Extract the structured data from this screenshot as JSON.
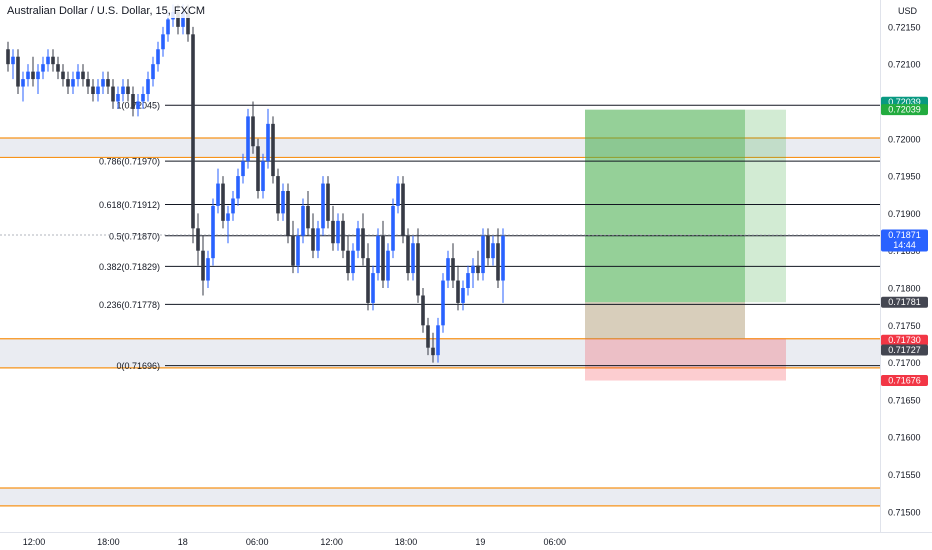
{
  "header": {
    "symbol_title": "Australian Dollar / U.S. Dollar, 15, FXCM",
    "currency": "USD"
  },
  "price_axis": {
    "ticks": [
      "0.72150",
      "0.72100",
      "0.72050",
      "0.72000",
      "0.71950",
      "0.71900",
      "0.71850",
      "0.71800",
      "0.71750",
      "0.71700",
      "0.71650",
      "0.71600",
      "0.71550",
      "0.71500"
    ],
    "tick_values": [
      0.7215,
      0.721,
      0.7205,
      0.72,
      0.7195,
      0.719,
      0.7185,
      0.718,
      0.7175,
      0.717,
      0.7165,
      0.716,
      0.7155,
      0.715
    ]
  },
  "time_axis": {
    "labels": [
      "12:00",
      "18:00",
      "18",
      "06:00",
      "12:00",
      "18:00",
      "19",
      "06:00"
    ],
    "bar_index": [
      0,
      24,
      48,
      72,
      96,
      120,
      144,
      168
    ]
  },
  "price_badges": [
    {
      "name": "tp-badge-top",
      "text": "0.72039",
      "price": 0.72049,
      "bg": "#089981",
      "fg": "#ffffff"
    },
    {
      "name": "tp-badge",
      "text": "0.72039",
      "price": 0.72039,
      "bg": "#22ab3f",
      "fg": "#ffffff"
    },
    {
      "name": "last-price-badge",
      "text": "0.71871",
      "sub": "14:44",
      "price": 0.71871,
      "bg": "#2962ff",
      "fg": "#ffffff"
    },
    {
      "name": "entry-badge",
      "text": "0.71781",
      "price": 0.71781,
      "bg": "#434651",
      "fg": "#ffffff"
    },
    {
      "name": "zone-badge-red",
      "text": "0.71730",
      "price": 0.7173,
      "bg": "#f23645",
      "fg": "#ffffff"
    },
    {
      "name": "zone-badge-grey",
      "text": "0.71727",
      "price": 0.71717,
      "bg": "#434651",
      "fg": "#ffffff"
    },
    {
      "name": "stop-badge",
      "text": "0.71676",
      "price": 0.71676,
      "bg": "#f23645",
      "fg": "#ffffff"
    }
  ],
  "fib_levels": [
    {
      "label": "1(0.72045)",
      "price": 0.72045
    },
    {
      "label": "0.786(0.71970)",
      "price": 0.7197
    },
    {
      "label": "0.618(0.71912)",
      "price": 0.71912
    },
    {
      "label": "0.5(0.71870)",
      "price": 0.7187
    },
    {
      "label": "0.382(0.71829)",
      "price": 0.71829
    },
    {
      "label": "0.236(0.71778)",
      "price": 0.71778
    },
    {
      "label": "0(0.71696)",
      "price": 0.71696
    }
  ],
  "zones": [
    {
      "top": 0.72001,
      "bottom": 0.71975
    },
    {
      "top": 0.71732,
      "bottom": 0.71693
    },
    {
      "top": 0.71532,
      "bottom": 0.71508
    }
  ],
  "colors": {
    "up": "#2962ff",
    "down": "#363a45",
    "zone_line": "#f7931a",
    "zone_fill": "#e3e6ed",
    "profit": "#4caf50",
    "loss": "#f23645",
    "fib_line": "#131722"
  },
  "position": {
    "entry": 0.71781,
    "target": 0.72039,
    "stop": 0.71676,
    "start_bar": 130,
    "end_bar": 170
  },
  "chart_data": {
    "type": "candlestick",
    "title": "Australian Dollar / U.S. Dollar, 15, FXCM",
    "ylabel": "USD",
    "ylim": [
      0.7148,
      0.7218
    ],
    "x_labels": [
      "12:00",
      "18:00",
      "18",
      "06:00",
      "12:00",
      "18:00",
      "19",
      "06:00"
    ],
    "candles": [
      [
        0.7212,
        0.7213,
        0.7209,
        0.721
      ],
      [
        0.721,
        0.7212,
        0.7208,
        0.7211
      ],
      [
        0.7211,
        0.7212,
        0.7206,
        0.7207
      ],
      [
        0.7207,
        0.7209,
        0.7205,
        0.7208
      ],
      [
        0.7208,
        0.721,
        0.7207,
        0.7209
      ],
      [
        0.7209,
        0.7211,
        0.7207,
        0.7208
      ],
      [
        0.7208,
        0.721,
        0.7206,
        0.7209
      ],
      [
        0.7209,
        0.7211,
        0.7208,
        0.721
      ],
      [
        0.721,
        0.7212,
        0.7209,
        0.7211
      ],
      [
        0.7211,
        0.7212,
        0.7209,
        0.721
      ],
      [
        0.721,
        0.7211,
        0.7208,
        0.7209
      ],
      [
        0.7209,
        0.721,
        0.7207,
        0.7208
      ],
      [
        0.7208,
        0.7209,
        0.7206,
        0.7207
      ],
      [
        0.7207,
        0.7209,
        0.7206,
        0.7208
      ],
      [
        0.7208,
        0.721,
        0.7207,
        0.7209
      ],
      [
        0.7209,
        0.721,
        0.7207,
        0.7208
      ],
      [
        0.7208,
        0.7209,
        0.7206,
        0.7207
      ],
      [
        0.7207,
        0.7208,
        0.7205,
        0.7206
      ],
      [
        0.7206,
        0.7208,
        0.7205,
        0.7207
      ],
      [
        0.7207,
        0.7209,
        0.7206,
        0.7208
      ],
      [
        0.7208,
        0.7209,
        0.7206,
        0.7207
      ],
      [
        0.7207,
        0.7208,
        0.7204,
        0.7205
      ],
      [
        0.7205,
        0.7207,
        0.7204,
        0.7206
      ],
      [
        0.7206,
        0.7208,
        0.7205,
        0.7207
      ],
      [
        0.7207,
        0.7208,
        0.7205,
        0.7206
      ],
      [
        0.7206,
        0.7207,
        0.7203,
        0.7204
      ],
      [
        0.7204,
        0.7206,
        0.7203,
        0.7205
      ],
      [
        0.7205,
        0.7207,
        0.7204,
        0.7206
      ],
      [
        0.7206,
        0.7209,
        0.7205,
        0.7208
      ],
      [
        0.7208,
        0.7211,
        0.7207,
        0.721
      ],
      [
        0.721,
        0.7213,
        0.7209,
        0.7212
      ],
      [
        0.7212,
        0.7215,
        0.7211,
        0.7214
      ],
      [
        0.7214,
        0.7217,
        0.7213,
        0.7216
      ],
      [
        0.7216,
        0.7218,
        0.7215,
        0.7217
      ],
      [
        0.7217,
        0.7218,
        0.7214,
        0.7215
      ],
      [
        0.7215,
        0.7218,
        0.7214,
        0.7217
      ],
      [
        0.7217,
        0.7218,
        0.7213,
        0.7214
      ],
      [
        0.7214,
        0.7215,
        0.7186,
        0.7188
      ],
      [
        0.7188,
        0.719,
        0.7183,
        0.7185
      ],
      [
        0.7185,
        0.7187,
        0.7179,
        0.7181
      ],
      [
        0.7181,
        0.7185,
        0.718,
        0.7184
      ],
      [
        0.7184,
        0.7192,
        0.7183,
        0.7191
      ],
      [
        0.7191,
        0.7196,
        0.719,
        0.7194
      ],
      [
        0.7194,
        0.7195,
        0.7188,
        0.7189
      ],
      [
        0.7189,
        0.7191,
        0.7186,
        0.719
      ],
      [
        0.719,
        0.7193,
        0.7189,
        0.7192
      ],
      [
        0.7192,
        0.7196,
        0.7191,
        0.7195
      ],
      [
        0.7195,
        0.7198,
        0.7194,
        0.7197
      ],
      [
        0.7197,
        0.7204,
        0.7196,
        0.7203
      ],
      [
        0.7203,
        0.7205,
        0.7198,
        0.7199
      ],
      [
        0.7199,
        0.72,
        0.7192,
        0.7193
      ],
      [
        0.7193,
        0.7198,
        0.7192,
        0.7197
      ],
      [
        0.7197,
        0.7204,
        0.7196,
        0.7202
      ],
      [
        0.7202,
        0.7203,
        0.7194,
        0.7195
      ],
      [
        0.7195,
        0.7196,
        0.7189,
        0.719
      ],
      [
        0.719,
        0.7194,
        0.7189,
        0.7193
      ],
      [
        0.7193,
        0.7194,
        0.7186,
        0.7187
      ],
      [
        0.7187,
        0.7189,
        0.7182,
        0.7183
      ],
      [
        0.7183,
        0.7188,
        0.7182,
        0.7187
      ],
      [
        0.7187,
        0.7192,
        0.7186,
        0.7191
      ],
      [
        0.7191,
        0.7193,
        0.7187,
        0.7188
      ],
      [
        0.7188,
        0.719,
        0.7184,
        0.7185
      ],
      [
        0.7185,
        0.7189,
        0.7184,
        0.7188
      ],
      [
        0.7188,
        0.7195,
        0.7187,
        0.7194
      ],
      [
        0.7194,
        0.7195,
        0.7188,
        0.7189
      ],
      [
        0.7189,
        0.7191,
        0.7185,
        0.7186
      ],
      [
        0.7186,
        0.719,
        0.7185,
        0.7189
      ],
      [
        0.7189,
        0.719,
        0.7184,
        0.7185
      ],
      [
        0.7185,
        0.7187,
        0.7181,
        0.7182
      ],
      [
        0.7182,
        0.7186,
        0.7181,
        0.7185
      ],
      [
        0.7185,
        0.7189,
        0.7184,
        0.7188
      ],
      [
        0.7188,
        0.719,
        0.7183,
        0.7184
      ],
      [
        0.7184,
        0.7186,
        0.7177,
        0.7178
      ],
      [
        0.7178,
        0.7183,
        0.7177,
        0.7182
      ],
      [
        0.7182,
        0.7188,
        0.7181,
        0.7187
      ],
      [
        0.7187,
        0.7189,
        0.718,
        0.7181
      ],
      [
        0.7181,
        0.7186,
        0.718,
        0.7185
      ],
      [
        0.7185,
        0.7192,
        0.7184,
        0.7191
      ],
      [
        0.7191,
        0.7195,
        0.719,
        0.7194
      ],
      [
        0.7194,
        0.7195,
        0.7186,
        0.7187
      ],
      [
        0.7187,
        0.7188,
        0.7181,
        0.7182
      ],
      [
        0.7182,
        0.7187,
        0.7181,
        0.7186
      ],
      [
        0.7186,
        0.7188,
        0.7178,
        0.7179
      ],
      [
        0.7179,
        0.718,
        0.7174,
        0.7175
      ],
      [
        0.7175,
        0.7176,
        0.7171,
        0.7172
      ],
      [
        0.7172,
        0.7174,
        0.717,
        0.7171
      ],
      [
        0.7171,
        0.7176,
        0.717,
        0.7175
      ],
      [
        0.7175,
        0.7182,
        0.7174,
        0.7181
      ],
      [
        0.7181,
        0.7185,
        0.718,
        0.7184
      ],
      [
        0.7184,
        0.7186,
        0.718,
        0.7181
      ],
      [
        0.7181,
        0.7183,
        0.7177,
        0.7178
      ],
      [
        0.7178,
        0.7181,
        0.7177,
        0.718
      ],
      [
        0.718,
        0.7183,
        0.7179,
        0.7182
      ],
      [
        0.7182,
        0.7184,
        0.718,
        0.7183
      ],
      [
        0.7183,
        0.7185,
        0.7181,
        0.7182
      ],
      [
        0.7182,
        0.7188,
        0.7181,
        0.7187
      ],
      [
        0.7187,
        0.7188,
        0.7183,
        0.7184
      ],
      [
        0.7184,
        0.7187,
        0.7183,
        0.7186
      ],
      [
        0.7186,
        0.7188,
        0.718,
        0.7181
      ],
      [
        0.7181,
        0.7188,
        0.7178,
        0.7187
      ]
    ]
  }
}
